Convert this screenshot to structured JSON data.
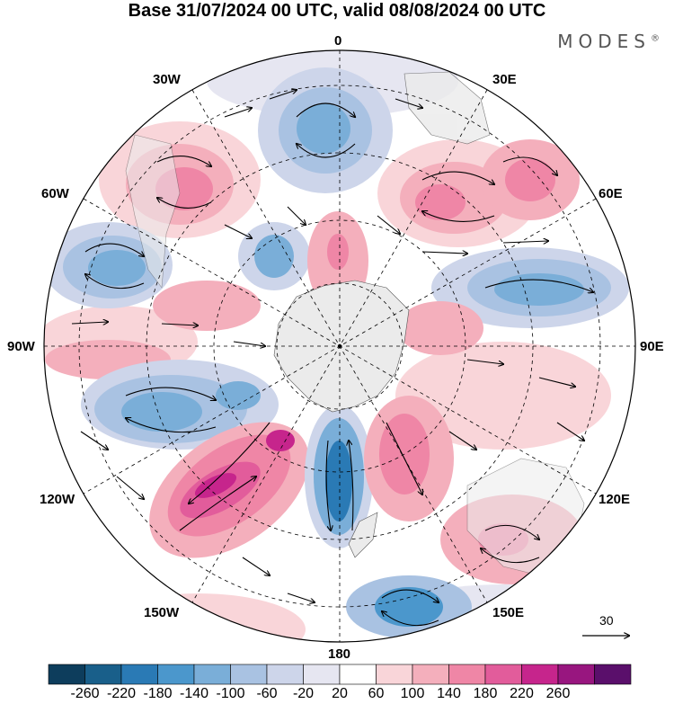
{
  "header": {
    "title": "Base 31/07/2024 00 UTC, valid 08/08/2024 00 UTC",
    "brand": "MODES",
    "brand_mark": "®"
  },
  "map": {
    "projection": "south-polar-stereographic",
    "longitude_labels": {
      "top": "0",
      "top_right": "30E",
      "right_upper": "60E",
      "right": "90E",
      "right_lower": "120E",
      "bottom_right": "150E",
      "bottom": "180",
      "bottom_left": "150W",
      "left_lower": "120W",
      "left": "90W",
      "left_upper": "60W",
      "top_left": "30W"
    },
    "reference_vector": "30",
    "land_color": "#ebebeb"
  },
  "colorbar": {
    "labels": [
      "-260",
      "-220",
      "-180",
      "-140",
      "-100",
      "-60",
      "-20",
      "20",
      "60",
      "100",
      "140",
      "180",
      "220",
      "260"
    ],
    "colors": [
      "#0d3d5c",
      "#195f8a",
      "#2a7ab5",
      "#4b97cc",
      "#7aaed8",
      "#a9c2e2",
      "#cdd5ea",
      "#e6e6f1",
      "#ffffff",
      "#f9d5d9",
      "#f4afbc",
      "#ef86a6",
      "#e25c9b",
      "#c6258c",
      "#98167f",
      "#5a0f6b"
    ]
  }
}
